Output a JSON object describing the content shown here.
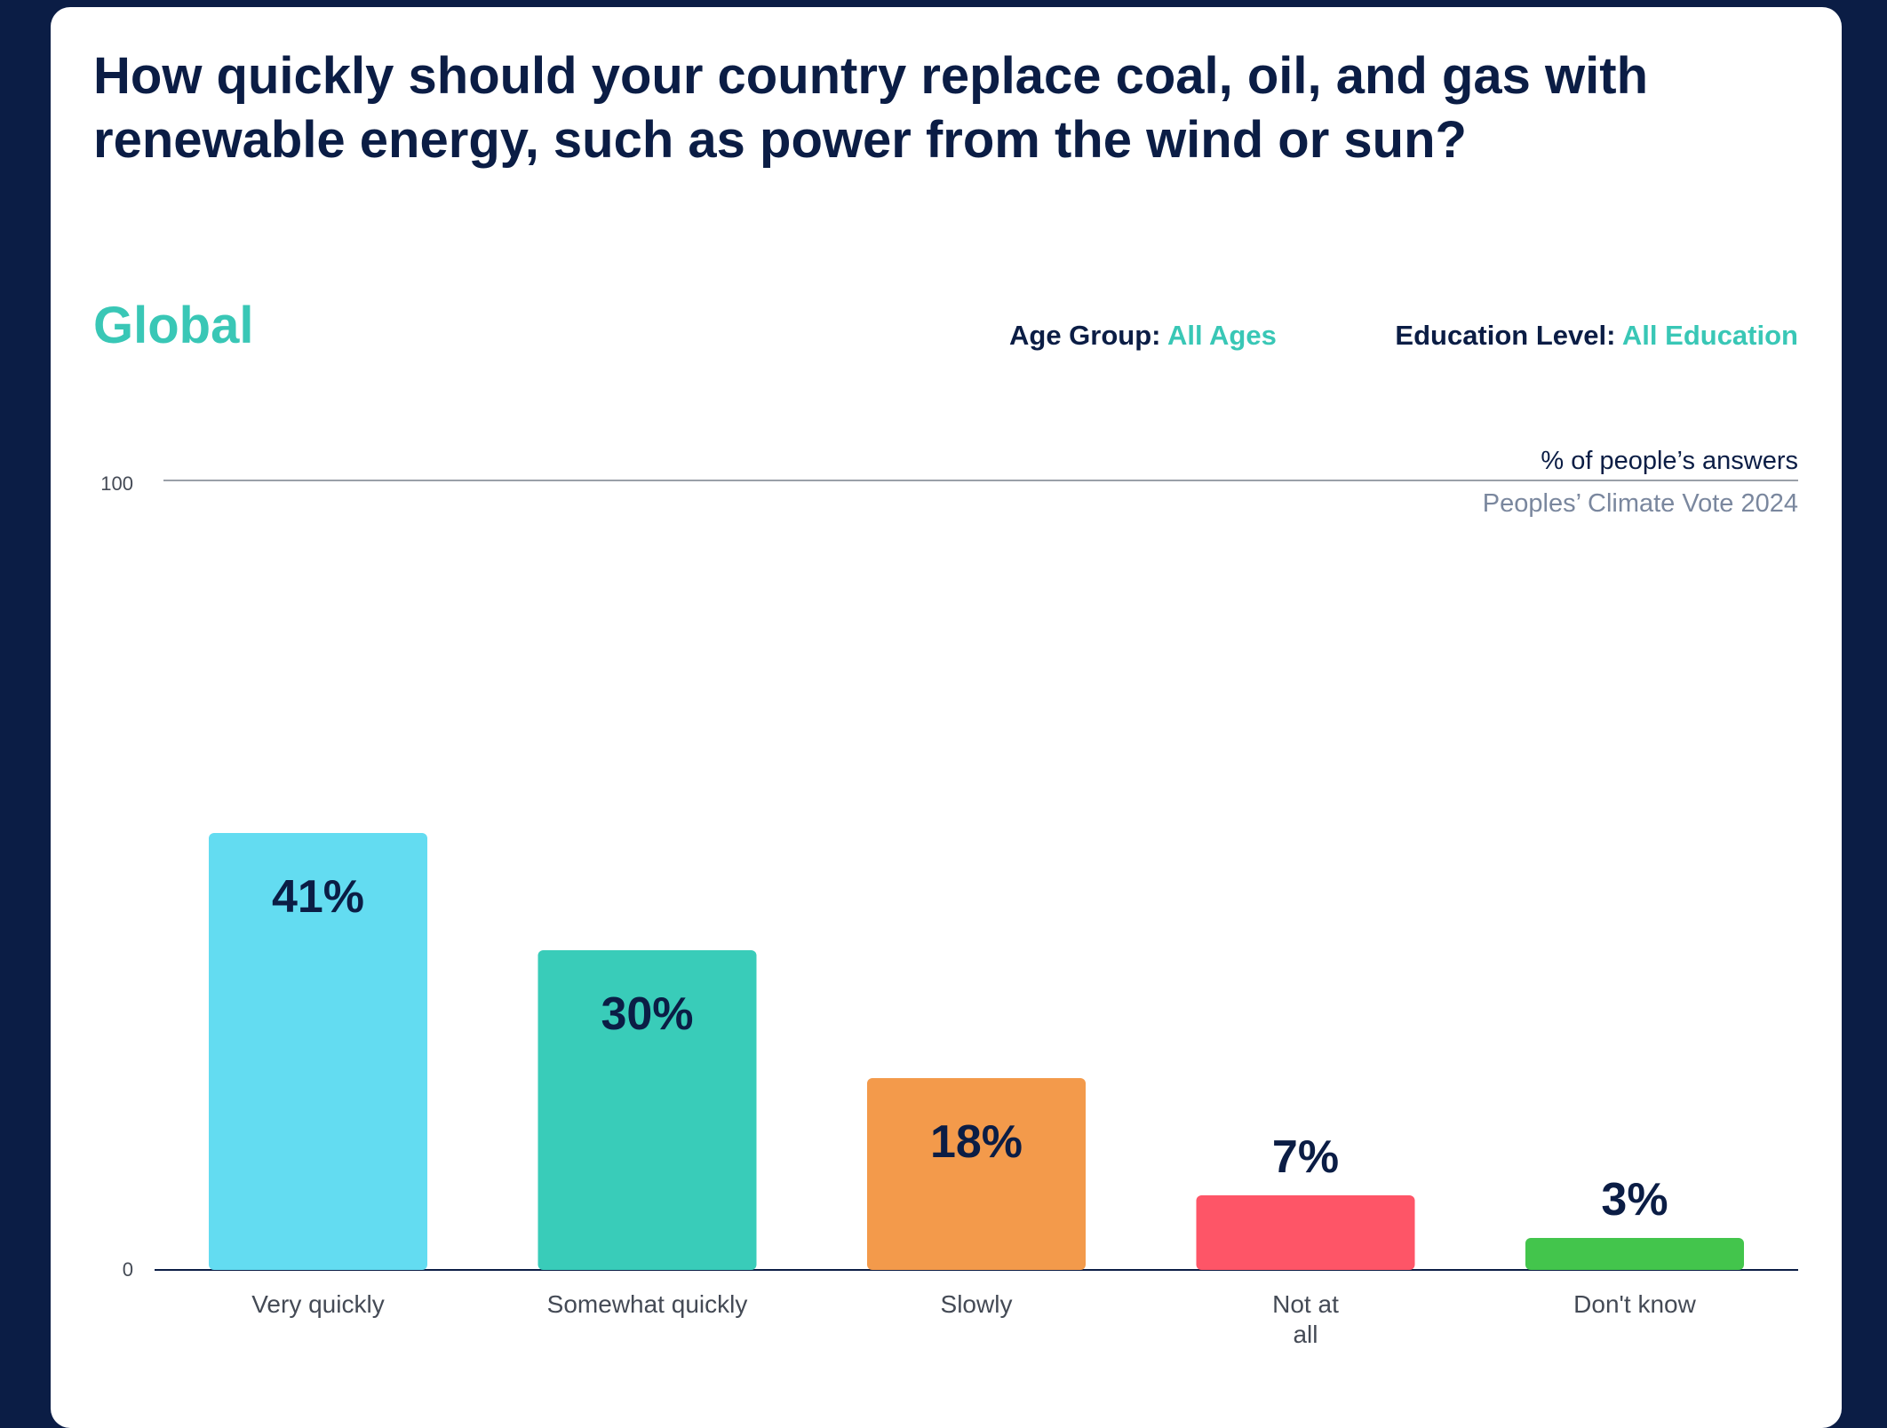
{
  "question": "How quickly should your country replace coal, oil, and gas with renewable energy, such as power from the wind or sun?",
  "region": "Global",
  "filters": {
    "age_label": "Age Group:",
    "age_value": "All Ages",
    "education_label": "Education Level:",
    "education_value": "All Education"
  },
  "colors": {
    "background": "#0b1d45",
    "accent": "#39c7b6",
    "text": "#0b1d45"
  },
  "chart_data": {
    "type": "bar",
    "units_label": "% of people’s answers",
    "source": "Peoples’ Climate Vote 2024",
    "ylim": [
      0,
      100
    ],
    "y_ticks": [
      "100",
      "0"
    ],
    "grid": false,
    "categories": [
      [
        "Very quickly"
      ],
      [
        "Somewhat quickly"
      ],
      [
        "Slowly"
      ],
      [
        "Not at",
        "all"
      ],
      [
        "Don't know"
      ]
    ],
    "values": [
      41,
      30,
      18,
      7,
      3
    ],
    "value_labels": [
      "41%",
      "30%",
      "18%",
      "7%",
      "3%"
    ],
    "bar_colors": [
      "#63dcf1",
      "#39ccb9",
      "#f39a4b",
      "#fe5567",
      "#43c54c"
    ]
  }
}
